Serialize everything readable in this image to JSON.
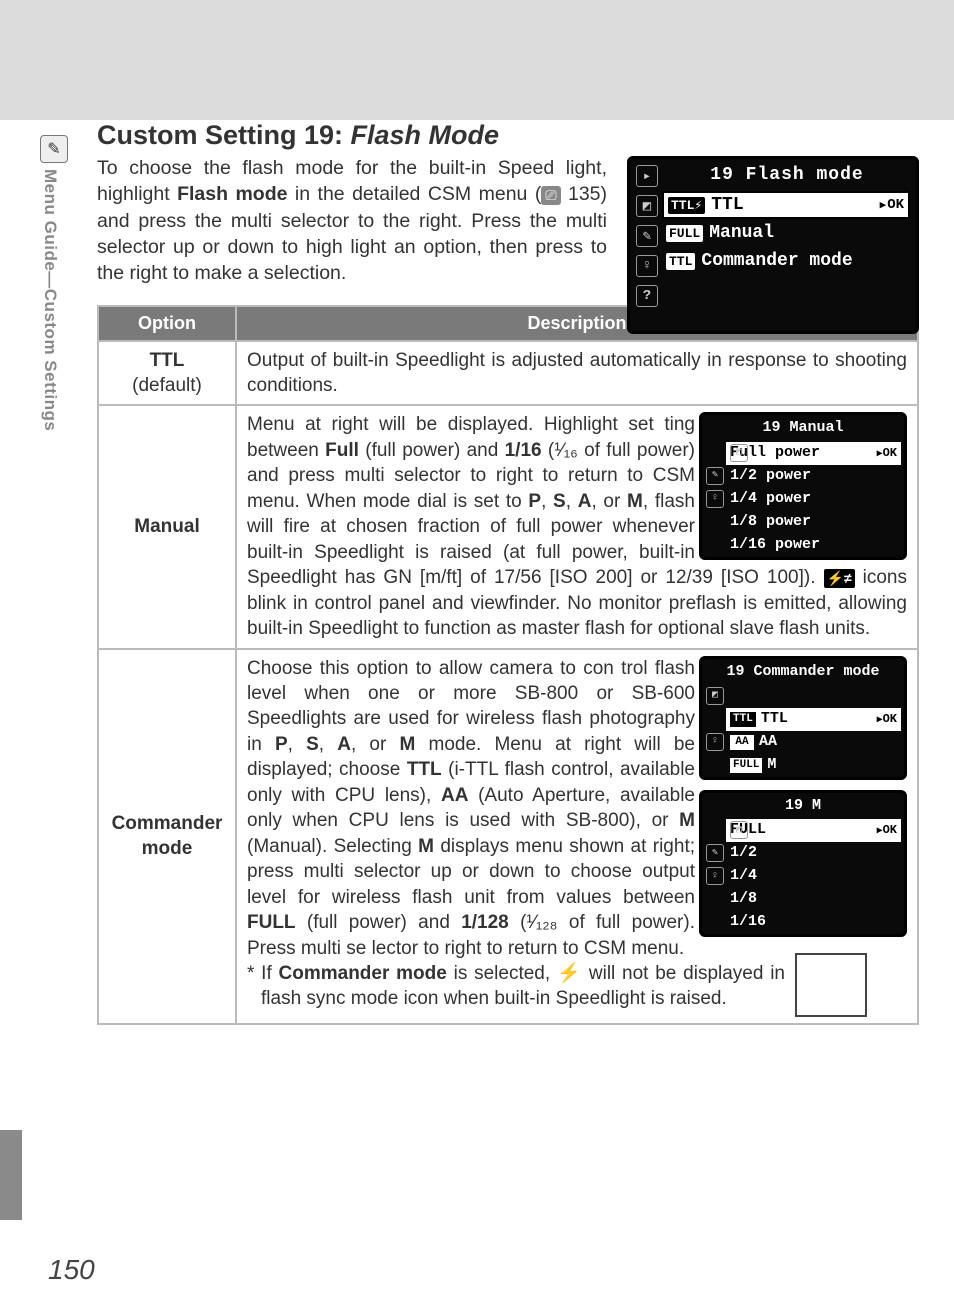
{
  "page": {
    "number": "150",
    "sidebar_label": "Menu Guide—Custom Settings",
    "title_prefix": "Custom Setting 19: ",
    "title_italic": "Flash Mode"
  },
  "intro": {
    "text1": "To choose the flash mode for the built-in Speed light, highlight ",
    "bold1": "Flash mode",
    "text2": " in the detailed CSM menu (",
    "icon_ref": "135",
    "text3": ") and press the multi selector to the right.  Press the multi selector up or down to high light an option, then press to the right to make a selection."
  },
  "lcd_main": {
    "title": "19 Flash mode",
    "rows": [
      {
        "badge": "TTL⚡",
        "label": "TTL",
        "selected": true,
        "ok": "OK"
      },
      {
        "badge": "FULL",
        "label": "Manual"
      },
      {
        "badge": "TTL",
        "label": "Commander mode"
      }
    ],
    "icon_glyphs": [
      "▶",
      "◧",
      "✎",
      "♀",
      "?"
    ]
  },
  "table": {
    "header_option": "Option",
    "header_desc": "Description",
    "rows": {
      "ttl": {
        "name": "TTL",
        "sub": "(default)",
        "desc": "Output of built-in Speedlight is adjusted automatically in response to shooting conditions."
      },
      "manual": {
        "name": "Manual",
        "desc_p1": "Menu at right will be displayed.  Highlight set ting between ",
        "b1": "Full",
        "p2": " (full power) and ",
        "b2": "1/16",
        "p3": " (¹⁄₁₆ of full power) and press multi selector to right to return to CSM menu.  When mode dial is set to ",
        "b3": "P",
        "p3a": ", ",
        "b4": "S",
        "p3b": ", ",
        "b5": "A",
        "p3c": ", or ",
        "b6": "M",
        "p4": ", flash will fire at chosen fraction of full power whenever built-in Speedlight is raised (at full power, built-in Speedlight has GN [m/ft] of 17/56 [ISO 200] or 12/39 [ISO 100]).  ",
        "flash_icon": "⚡≠",
        "p5": " icons blink in control panel and viewfinder.  No monitor preflash is emitted, allowing built-in Speedlight to function as master flash for optional slave flash units.",
        "lcd": {
          "title": "19 Manual",
          "rows": [
            {
              "label": "Full power",
              "selected": true,
              "ok": "OK"
            },
            {
              "label": "1/2  power"
            },
            {
              "label": "1/4  power"
            },
            {
              "label": "1/8  power"
            },
            {
              "label": "1/16 power"
            }
          ]
        }
      },
      "commander": {
        "name": "Commander mode",
        "p1": "Choose this option to allow camera to con trol flash level when one or more SB-800 or SB-600 Speedlights are used for wireless flash photography in ",
        "b1": "P",
        "c1": ", ",
        "b2": "S",
        "c2": ", ",
        "b3": "A",
        "c3": ", or ",
        "b4": "M",
        "p2": " mode.  Menu at right will be displayed; choose ",
        "b5": "TTL",
        "p3": " (i-TTL flash control, available only with CPU lens), ",
        "b6": "AA",
        "p4": " (Auto Aperture, available only when CPU lens is used with SB-800), or ",
        "b7": "M",
        "p5": " (Manual).  Selecting ",
        "b8": "M",
        "p6": " displays menu shown at right; press multi selector up or down to choose output level for wireless flash unit from values between ",
        "b9": "FULL",
        "p7": " (full power) and ",
        "b10": "1/128",
        "p8": " (¹⁄₁₂₈ of full power).  Press multi se lector to right to return to CSM menu.",
        "note_star": "* If ",
        "note_b": "Commander mode",
        "note_mid": " is selected, ",
        "note_flash": "⚡",
        "note_end": " will not be displayed in flash sync mode icon when built-in Speedlight is raised.",
        "lcd1": {
          "title": "19 Commander mode",
          "rows": [
            {
              "badge": "TTL",
              "label": "TTL",
              "selected": true,
              "ok": "OK"
            },
            {
              "badge": "AA",
              "label": "AA"
            },
            {
              "badge": "FULL",
              "label": "M"
            }
          ]
        },
        "lcd2": {
          "title": "19 M",
          "rows": [
            {
              "label": "FULL",
              "selected": true,
              "ok": "OK"
            },
            {
              "label": "1/2"
            },
            {
              "label": "1/4"
            },
            {
              "label": "1/8"
            },
            {
              "label": "1/16"
            }
          ]
        }
      }
    }
  },
  "colors": {
    "page_bg": "#dcdcdc",
    "table_header_bg": "#7a7a7a",
    "border": "#bbbbbb",
    "lcd_bg": "#0a0a0a"
  }
}
